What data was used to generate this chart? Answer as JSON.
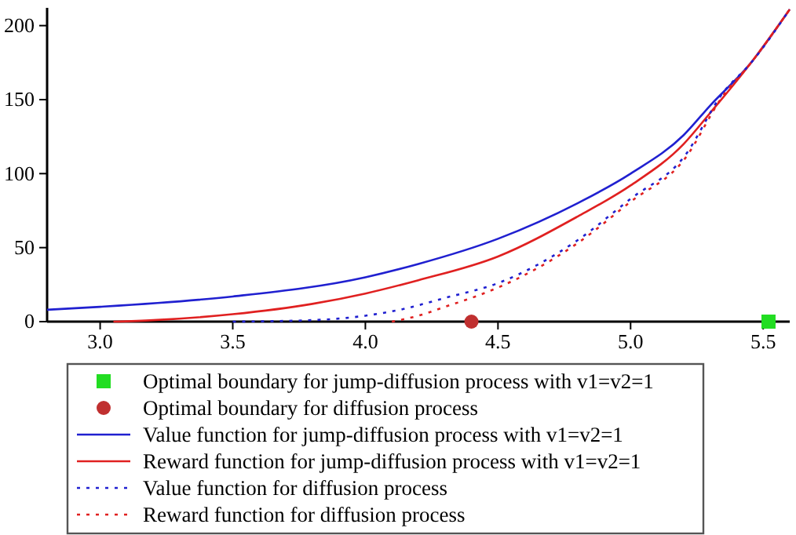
{
  "chart_data": {
    "type": "line",
    "xlim": [
      2.8,
      5.6
    ],
    "xticks": [
      {
        "value": 3.0,
        "label": "3.0"
      },
      {
        "value": 3.5,
        "label": "3.5"
      },
      {
        "value": 4.0,
        "label": "4.0"
      },
      {
        "value": 4.5,
        "label": "4.5"
      },
      {
        "value": 5.0,
        "label": "5.0"
      },
      {
        "value": 5.5,
        "label": "5.5"
      }
    ],
    "ylim": [
      0,
      212
    ],
    "yticks": [
      0,
      50,
      100,
      150,
      200
    ],
    "legend": "bottom",
    "grid": false,
    "series": [
      {
        "name": "Optimal boundary for jump-diffusion process with v1=v2=1",
        "type": "scatter",
        "marker": "square",
        "color": "#22dd22",
        "x": [
          5.52
        ],
        "values": [
          0
        ]
      },
      {
        "name": "Optimal boundary for diffusion process",
        "type": "scatter",
        "marker": "circle",
        "color": "#c03030",
        "x": [
          4.4
        ],
        "values": [
          0
        ]
      },
      {
        "name": "Value function for jump-diffusion process with v1=v2=1",
        "line_style": "solid",
        "color": "#2020d0",
        "x": [
          2.8,
          3.0,
          3.5,
          4.0,
          4.2,
          4.5,
          4.8,
          5.0,
          5.2,
          5.3,
          5.45,
          5.6
        ],
        "values": [
          8,
          10,
          17,
          30,
          39,
          56,
          80,
          100,
          126,
          146,
          174,
          211
        ]
      },
      {
        "name": "Reward function for jump-diffusion process with v1=v2=1",
        "line_style": "solid",
        "color": "#e02020",
        "x": [
          3.05,
          3.2,
          3.5,
          3.8,
          4.0,
          4.2,
          4.5,
          4.8,
          5.0,
          5.2,
          5.3,
          5.45,
          5.6
        ],
        "values": [
          0,
          1,
          5,
          12,
          19,
          28,
          44,
          71,
          92,
          120,
          141,
          174,
          211
        ]
      },
      {
        "name": "Value function for diffusion process",
        "line_style": "dotted",
        "color": "#2020d0",
        "x": [
          3.5,
          3.8,
          4.0,
          4.13,
          4.3,
          4.5,
          4.8,
          5.0,
          5.2,
          5.35,
          5.45,
          5.6
        ],
        "values": [
          0,
          1,
          4,
          8,
          16,
          26,
          55,
          83,
          111,
          155,
          174,
          211
        ]
      },
      {
        "name": "Reward function for diffusion process",
        "line_style": "dotted",
        "color": "#e02020",
        "x": [
          4.1,
          4.2,
          4.3,
          4.4,
          4.5,
          4.8,
          5.0,
          5.2,
          5.35,
          5.45,
          5.6
        ],
        "values": [
          0,
          4,
          10,
          16,
          23,
          53,
          81,
          109,
          153,
          174,
          211
        ]
      }
    ]
  }
}
